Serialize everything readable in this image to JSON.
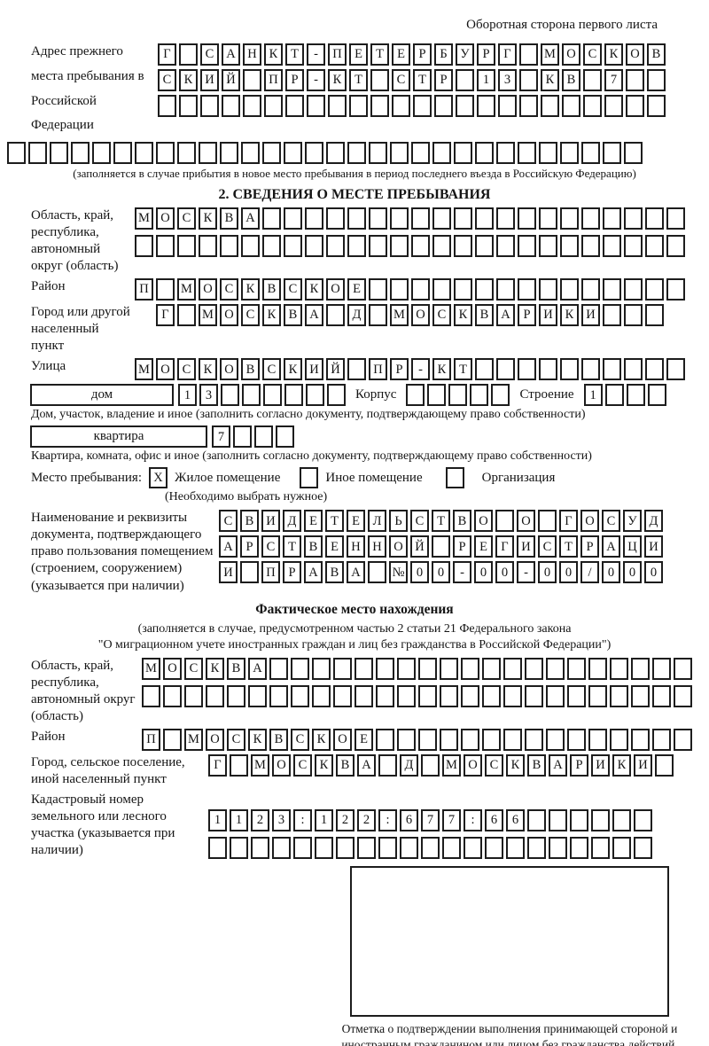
{
  "header": {
    "note": "Оборотная сторона первого листа"
  },
  "prev_address": {
    "label": "Адрес прежнего места пребывания в Российской Федерации",
    "row1": {
      "text": "Г САНКТ-ПЕТЕРБУРГ МОСКОВ",
      "count": 24
    },
    "row2": {
      "text": "СКИЙ ПР-КТ СТР 13 КВ 7",
      "count": 24
    },
    "row3": {
      "text": "",
      "count": 24
    },
    "row4": {
      "text": "",
      "count": 30
    },
    "note": "(заполняется в случае прибытия в новое место пребывания в период последнего въезда в Российскую Федерацию)"
  },
  "section2": {
    "title": "2. СВЕДЕНИЯ О МЕСТЕ ПРЕБЫВАНИЯ",
    "oblast": {
      "label": "Область, край, республика, автономный округ (область)",
      "row1": {
        "text": "МОСКВА",
        "count": 26
      },
      "row2": {
        "text": "",
        "count": 26
      }
    },
    "raion": {
      "label": "Район",
      "row": {
        "text": "П МОСКВСКОЕ",
        "count": 26
      }
    },
    "gorod": {
      "label": "Город или другой населенный пункт",
      "row": {
        "text": "Г МОСКВА Д МОСКВАРИКИ",
        "count": 24
      }
    },
    "ulitsa": {
      "label": "Улица",
      "row": {
        "text": "МОСКОВСКИЙ ПР-КТ",
        "count": 26
      }
    },
    "dom": {
      "box_label": "дом",
      "row": {
        "text": "13",
        "count": 8
      },
      "korpus_label": "Корпус",
      "korpus_row": {
        "text": "",
        "count": 5
      },
      "stroenie_label": "Строение",
      "stroenie_row": {
        "text": "1",
        "count": 4
      },
      "note": "Дом, участок, владение и иное (заполнить согласно документу, подтверждающему право собственности)"
    },
    "kvartira": {
      "box_label": "квартира",
      "row": {
        "text": "7",
        "count": 4
      },
      "note": "Квартира, комната, офис и иное (заполнить согласно документу, подтверждающему право собственности)"
    },
    "stay": {
      "label": "Место пребывания:",
      "options": [
        {
          "label": "Жилое помещение",
          "mark": "X"
        },
        {
          "label": "Иное помещение",
          "mark": ""
        },
        {
          "label": "Организация",
          "mark": ""
        }
      ],
      "note": "(Необходимо выбрать нужное)"
    },
    "doc": {
      "label": "Наименование и реквизиты документа, подтверждающего право пользования помещением (строением, сооружением) (указывается при наличии)",
      "row1": {
        "text": "СВИДЕТЕЛЬСТВО О ГОСУД",
        "count": 21
      },
      "row2": {
        "text": "АРСТВЕННОЙ РЕГИСТРАЦИ",
        "count": 21
      },
      "row3": {
        "text": "И ПРАВА №00-00-00/000",
        "count": 21
      }
    }
  },
  "fact": {
    "title": "Фактическое место нахождения",
    "note1": "(заполняется в случае, предусмотренном частью 2 статьи 21 Федерального закона",
    "note2": "\"О миграционном учете иностранных граждан и лиц без гражданства в Российской Федерации\")",
    "oblast": {
      "label": "Область, край, республика, автономный округ (область)",
      "row1": {
        "text": "МОСКВА",
        "count": 26
      },
      "row2": {
        "text": "",
        "count": 26
      }
    },
    "raion": {
      "label": "Район",
      "row": {
        "text": "П МОСКВСКОЕ",
        "count": 26
      }
    },
    "gorod": {
      "label": "Город, сельское поселение, иной населенный пункт",
      "row": {
        "text": "Г МОСКВА Д МОСКВАРИКИ",
        "count": 22
      }
    },
    "kadastr": {
      "label": "Кадастровый номер земельного или лесного участка (указывается при наличии)",
      "row1": {
        "text": "1123:122:677:66",
        "count": 21
      },
      "row2": {
        "text": "",
        "count": 21
      }
    },
    "stamp_caption": "Отметка о подтверждении выполнения принимающей стороной и иностранным гражданином или лицом без гражданства действий, необходимых для его постановки на учет по месту пребывания"
  }
}
